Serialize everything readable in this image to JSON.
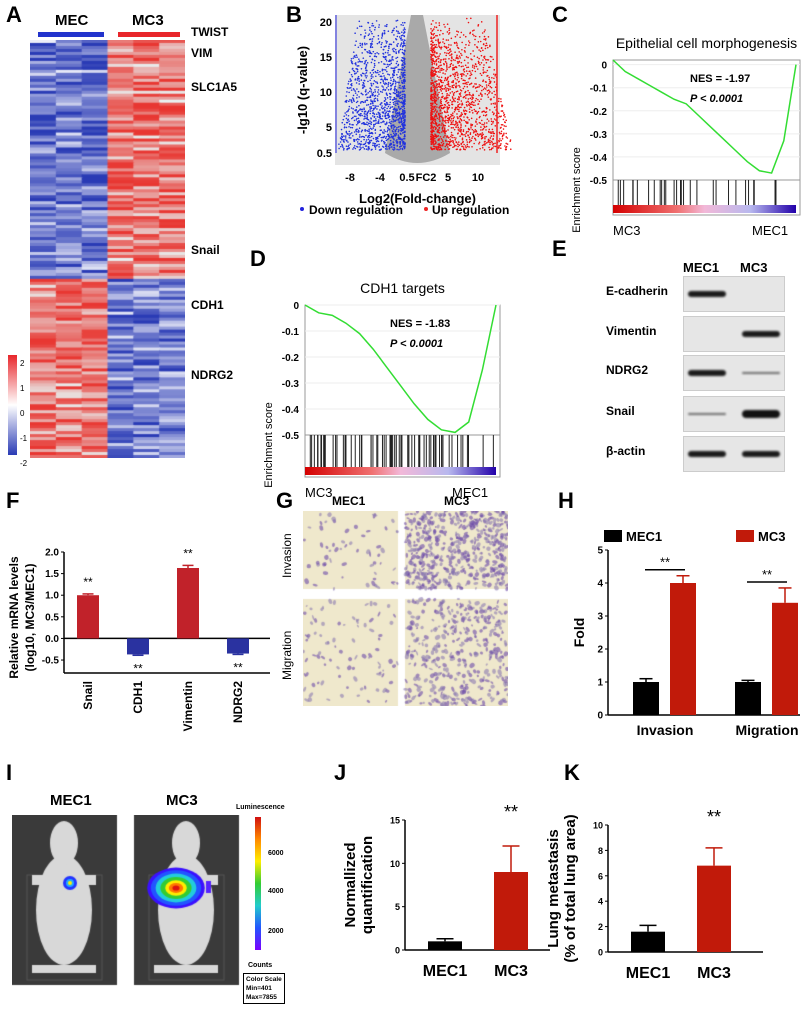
{
  "panels": {
    "A": "A",
    "B": "B",
    "C": "C",
    "D": "D",
    "E": "E",
    "F": "F",
    "G": "G",
    "H": "H",
    "I": "I",
    "J": "J",
    "K": "K"
  },
  "colors": {
    "red": "#c8170d",
    "blue": "#2b34a8",
    "black": "#000000",
    "green": "#33dd33",
    "heat_high": "#e8262b",
    "heat_low": "#2a3bb5"
  },
  "heatmap": {
    "groups": [
      "MEC",
      "MC3"
    ],
    "genes": [
      "TWIST",
      "VIM",
      "SLC1A5",
      "Snail",
      "CDH1",
      "NDRG2"
    ],
    "colorbar_ticks": [
      "2",
      "1",
      "0",
      "-1",
      "-2"
    ]
  },
  "chart_data": [
    {
      "panel": "B",
      "type": "scatter",
      "xlabel": "Log2(Fold-change)",
      "ylabel": "-lg10 (q-value)",
      "x_ticks": [
        "-8",
        "-4",
        "0.5",
        "FC2",
        "5",
        "10"
      ],
      "y_ticks": [
        "0.5",
        "5",
        "10",
        "15",
        "20"
      ],
      "ylim": [
        0,
        20
      ],
      "legend": [
        "Down regulation",
        "Up regulation"
      ],
      "legend_placement": "bottom"
    },
    {
      "panel": "C",
      "type": "line",
      "title": "Epithelial cell morphogenesis",
      "ylabel": "Enrichment score",
      "y_ticks": [
        "0",
        "-0.1",
        "-0.2",
        "-0.3",
        "-0.4",
        "-0.5"
      ],
      "ylim": [
        -0.5,
        0.02
      ],
      "es": [
        0.02,
        -0.03,
        -0.06,
        -0.09,
        -0.12,
        -0.15,
        -0.17,
        -0.22,
        -0.27,
        -0.32,
        -0.37,
        -0.42,
        -0.46,
        -0.47,
        -0.33,
        0.0
      ],
      "annotation": [
        "NES = -1.97",
        "P < 0.0001"
      ],
      "left_label": "MC3",
      "right_label": "MEC1"
    },
    {
      "panel": "D",
      "type": "line",
      "title": "CDH1 targets",
      "ylabel": "Enrichment score",
      "y_ticks": [
        "0",
        "-0.1",
        "-0.2",
        "-0.3",
        "-0.4",
        "-0.5"
      ],
      "ylim": [
        -0.5,
        0.0
      ],
      "es": [
        0.0,
        -0.03,
        -0.04,
        -0.07,
        -0.11,
        -0.17,
        -0.24,
        -0.31,
        -0.38,
        -0.44,
        -0.48,
        -0.49,
        -0.45,
        -0.25,
        0.0
      ],
      "annotation": [
        "NES = -1.83",
        "P < 0.0001"
      ],
      "left_label": "MC3",
      "right_label": "MEC1"
    },
    {
      "panel": "F",
      "type": "bar",
      "categories": [
        "Snail",
        "CDH1",
        "Vimentin",
        "NDRG2"
      ],
      "values": [
        1.0,
        -0.37,
        1.63,
        -0.35
      ],
      "errors": [
        0.03,
        0.02,
        0.06,
        0.02
      ],
      "significance": [
        "**",
        "**",
        "**",
        "**"
      ],
      "ylabel": "Relative mRNA levels (log10, MC3/MEC1)",
      "y_ticks": [
        "-0.5",
        "0.0",
        "0.5",
        "1.0",
        "1.5",
        "2.0"
      ],
      "ylim": [
        -0.8,
        2.0
      ]
    },
    {
      "panel": "H",
      "type": "bar",
      "categories": [
        "Invasion",
        "Migration"
      ],
      "series": [
        {
          "name": "MEC1",
          "values": [
            1.0,
            1.0
          ],
          "errors": [
            0.1,
            0.05
          ]
        },
        {
          "name": "MC3",
          "values": [
            4.0,
            3.4
          ],
          "errors": [
            0.22,
            0.45
          ]
        }
      ],
      "significance": [
        "**",
        "**"
      ],
      "ylabel": "Fold",
      "y_ticks": [
        "0",
        "1",
        "2",
        "3",
        "4",
        "5"
      ],
      "ylim": [
        0,
        5
      ],
      "legend_placement": "top"
    },
    {
      "panel": "J",
      "type": "bar",
      "categories": [
        "MEC1",
        "MC3"
      ],
      "values": [
        1.0,
        9.0
      ],
      "errors": [
        0.3,
        3.0
      ],
      "significance": "**",
      "ylabel": "Normallized quantification",
      "y_ticks": [
        "0",
        "5",
        "10",
        "15"
      ],
      "ylim": [
        0,
        15
      ]
    },
    {
      "panel": "K",
      "type": "bar",
      "categories": [
        "MEC1",
        "MC3"
      ],
      "values": [
        1.6,
        6.8
      ],
      "errors": [
        0.5,
        1.4
      ],
      "significance": "**",
      "ylabel": "Lung metastasis (% of total lung area)",
      "y_ticks": [
        "0",
        "2",
        "4",
        "6",
        "8",
        "10"
      ],
      "ylim": [
        0,
        10
      ]
    }
  ],
  "western": {
    "columns": [
      "MEC1",
      "MC3"
    ],
    "rows": [
      "E-cadherin",
      "Vimentin",
      "NDRG2",
      "Snail",
      "β-actin"
    ]
  },
  "transwell": {
    "columns": [
      "MEC1",
      "MC3"
    ],
    "rows": [
      "Invasion",
      "Migration"
    ]
  },
  "imaging": {
    "columns": [
      "MEC1",
      "MC3"
    ],
    "scale_title": "Luminescence",
    "scale_ticks": [
      "6000",
      "4000",
      "2000"
    ],
    "scale_unit": "Counts",
    "scale_box": [
      "Color Scale",
      "Min=401",
      "Max=7855"
    ]
  }
}
